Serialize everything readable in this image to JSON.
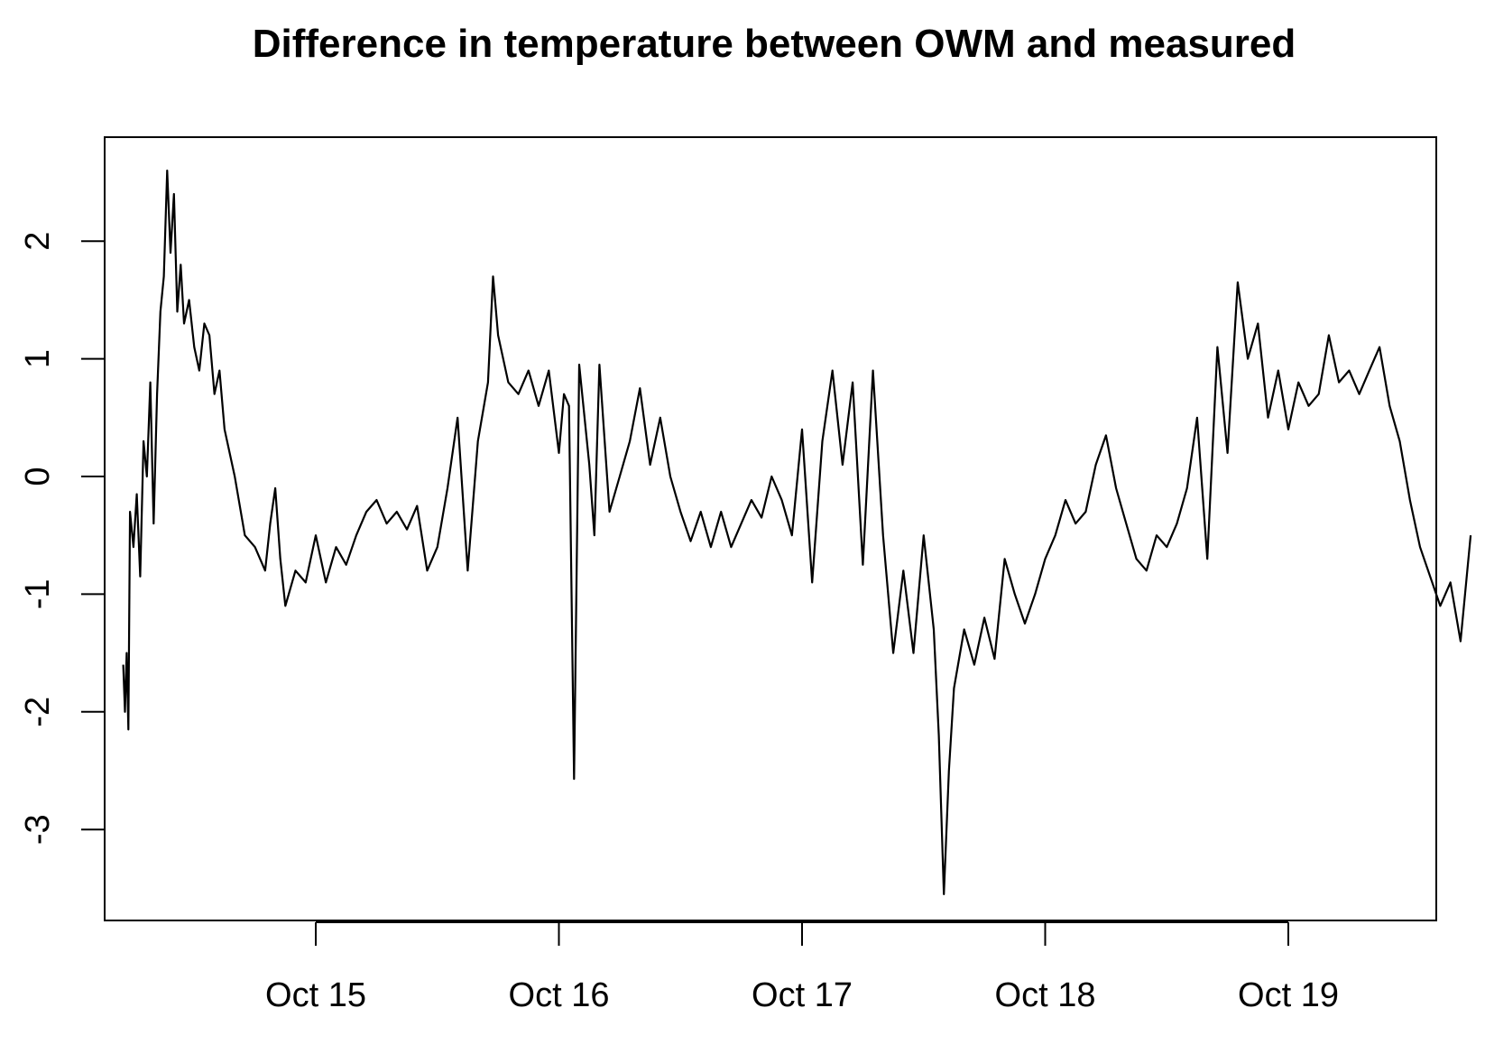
{
  "chart_data": {
    "type": "line",
    "title": "Difference in temperature between OWM and measured",
    "xlabel": "",
    "ylabel": "",
    "x_ticks": [
      "Oct 15",
      "Oct 16",
      "Oct 17",
      "Oct 18",
      "Oct 19"
    ],
    "y_ticks": [
      -3,
      -2,
      -1,
      0,
      1,
      2
    ],
    "xlim": [
      "2014-10-14 03:20",
      "2014-10-19 18:00"
    ],
    "ylim": [
      -3.75,
      2.9
    ],
    "grid": false,
    "legend": "none",
    "line_color": "#000000",
    "series": [
      {
        "points": [
          [
            "2014-10-14 05:00",
            -1.6
          ],
          [
            "2014-10-14 05:10",
            -2.0
          ],
          [
            "2014-10-14 05:20",
            -1.5
          ],
          [
            "2014-10-14 05:30",
            -2.15
          ],
          [
            "2014-10-14 05:40",
            -0.3
          ],
          [
            "2014-10-14 06:00",
            -0.6
          ],
          [
            "2014-10-14 06:20",
            -0.15
          ],
          [
            "2014-10-14 06:40",
            -0.85
          ],
          [
            "2014-10-14 07:00",
            0.3
          ],
          [
            "2014-10-14 07:20",
            0.0
          ],
          [
            "2014-10-14 07:40",
            0.8
          ],
          [
            "2014-10-14 08:00",
            -0.4
          ],
          [
            "2014-10-14 08:20",
            0.7
          ],
          [
            "2014-10-14 08:40",
            1.4
          ],
          [
            "2014-10-14 09:00",
            1.7
          ],
          [
            "2014-10-14 09:20",
            2.6
          ],
          [
            "2014-10-14 09:40",
            1.9
          ],
          [
            "2014-10-14 10:00",
            2.4
          ],
          [
            "2014-10-14 10:20",
            1.4
          ],
          [
            "2014-10-14 10:40",
            1.8
          ],
          [
            "2014-10-14 11:00",
            1.3
          ],
          [
            "2014-10-14 11:30",
            1.5
          ],
          [
            "2014-10-14 12:00",
            1.1
          ],
          [
            "2014-10-14 12:30",
            0.9
          ],
          [
            "2014-10-14 13:00",
            1.3
          ],
          [
            "2014-10-14 13:30",
            1.2
          ],
          [
            "2014-10-14 14:00",
            0.7
          ],
          [
            "2014-10-14 14:30",
            0.9
          ],
          [
            "2014-10-14 15:00",
            0.4
          ],
          [
            "2014-10-14 16:00",
            0.0
          ],
          [
            "2014-10-14 17:00",
            -0.5
          ],
          [
            "2014-10-14 18:00",
            -0.6
          ],
          [
            "2014-10-14 19:00",
            -0.8
          ],
          [
            "2014-10-14 19:30",
            -0.4
          ],
          [
            "2014-10-14 20:00",
            -0.1
          ],
          [
            "2014-10-14 20:30",
            -0.7
          ],
          [
            "2014-10-14 21:00",
            -1.1
          ],
          [
            "2014-10-14 22:00",
            -0.8
          ],
          [
            "2014-10-14 23:00",
            -0.9
          ],
          [
            "2014-10-15 00:00",
            -0.5
          ],
          [
            "2014-10-15 01:00",
            -0.9
          ],
          [
            "2014-10-15 02:00",
            -0.6
          ],
          [
            "2014-10-15 03:00",
            -0.75
          ],
          [
            "2014-10-15 04:00",
            -0.5
          ],
          [
            "2014-10-15 05:00",
            -0.3
          ],
          [
            "2014-10-15 06:00",
            -0.2
          ],
          [
            "2014-10-15 07:00",
            -0.4
          ],
          [
            "2014-10-15 08:00",
            -0.3
          ],
          [
            "2014-10-15 09:00",
            -0.45
          ],
          [
            "2014-10-15 10:00",
            -0.25
          ],
          [
            "2014-10-15 11:00",
            -0.8
          ],
          [
            "2014-10-15 12:00",
            -0.6
          ],
          [
            "2014-10-15 13:00",
            -0.1
          ],
          [
            "2014-10-15 14:00",
            0.5
          ],
          [
            "2014-10-15 15:00",
            -0.8
          ],
          [
            "2014-10-15 16:00",
            0.3
          ],
          [
            "2014-10-15 17:00",
            0.8
          ],
          [
            "2014-10-15 17:30",
            1.7
          ],
          [
            "2014-10-15 18:00",
            1.2
          ],
          [
            "2014-10-15 19:00",
            0.8
          ],
          [
            "2014-10-15 20:00",
            0.7
          ],
          [
            "2014-10-15 21:00",
            0.9
          ],
          [
            "2014-10-15 22:00",
            0.6
          ],
          [
            "2014-10-15 23:00",
            0.9
          ],
          [
            "2014-10-16 00:00",
            0.2
          ],
          [
            "2014-10-16 00:30",
            0.7
          ],
          [
            "2014-10-16 01:00",
            0.6
          ],
          [
            "2014-10-16 01:30",
            -2.57
          ],
          [
            "2014-10-16 02:00",
            0.95
          ],
          [
            "2014-10-16 03:00",
            0.1
          ],
          [
            "2014-10-16 03:30",
            -0.5
          ],
          [
            "2014-10-16 04:00",
            0.95
          ],
          [
            "2014-10-16 05:00",
            -0.3
          ],
          [
            "2014-10-16 06:00",
            0.0
          ],
          [
            "2014-10-16 07:00",
            0.3
          ],
          [
            "2014-10-16 08:00",
            0.75
          ],
          [
            "2014-10-16 09:00",
            0.1
          ],
          [
            "2014-10-16 10:00",
            0.5
          ],
          [
            "2014-10-16 11:00",
            0.0
          ],
          [
            "2014-10-16 12:00",
            -0.3
          ],
          [
            "2014-10-16 13:00",
            -0.55
          ],
          [
            "2014-10-16 14:00",
            -0.3
          ],
          [
            "2014-10-16 15:00",
            -0.6
          ],
          [
            "2014-10-16 16:00",
            -0.3
          ],
          [
            "2014-10-16 17:00",
            -0.6
          ],
          [
            "2014-10-16 18:00",
            -0.4
          ],
          [
            "2014-10-16 19:00",
            -0.2
          ],
          [
            "2014-10-16 20:00",
            -0.35
          ],
          [
            "2014-10-16 21:00",
            0.0
          ],
          [
            "2014-10-16 22:00",
            -0.2
          ],
          [
            "2014-10-16 23:00",
            -0.5
          ],
          [
            "2014-10-17 00:00",
            0.4
          ],
          [
            "2014-10-17 01:00",
            -0.9
          ],
          [
            "2014-10-17 02:00",
            0.3
          ],
          [
            "2014-10-17 03:00",
            0.9
          ],
          [
            "2014-10-17 04:00",
            0.1
          ],
          [
            "2014-10-17 05:00",
            0.8
          ],
          [
            "2014-10-17 06:00",
            -0.75
          ],
          [
            "2014-10-17 07:00",
            0.9
          ],
          [
            "2014-10-17 08:00",
            -0.5
          ],
          [
            "2014-10-17 09:00",
            -1.5
          ],
          [
            "2014-10-17 10:00",
            -0.8
          ],
          [
            "2014-10-17 11:00",
            -1.5
          ],
          [
            "2014-10-17 12:00",
            -0.5
          ],
          [
            "2014-10-17 13:00",
            -1.3
          ],
          [
            "2014-10-17 13:30",
            -2.2
          ],
          [
            "2014-10-17 14:00",
            -3.55
          ],
          [
            "2014-10-17 14:30",
            -2.5
          ],
          [
            "2014-10-17 15:00",
            -1.8
          ],
          [
            "2014-10-17 16:00",
            -1.3
          ],
          [
            "2014-10-17 17:00",
            -1.6
          ],
          [
            "2014-10-17 18:00",
            -1.2
          ],
          [
            "2014-10-17 19:00",
            -1.55
          ],
          [
            "2014-10-17 20:00",
            -0.7
          ],
          [
            "2014-10-17 21:00",
            -1.0
          ],
          [
            "2014-10-17 22:00",
            -1.25
          ],
          [
            "2014-10-17 23:00",
            -1.0
          ],
          [
            "2014-10-18 00:00",
            -0.7
          ],
          [
            "2014-10-18 01:00",
            -0.5
          ],
          [
            "2014-10-18 02:00",
            -0.2
          ],
          [
            "2014-10-18 03:00",
            -0.4
          ],
          [
            "2014-10-18 04:00",
            -0.3
          ],
          [
            "2014-10-18 05:00",
            0.1
          ],
          [
            "2014-10-18 06:00",
            0.35
          ],
          [
            "2014-10-18 07:00",
            -0.1
          ],
          [
            "2014-10-18 08:00",
            -0.4
          ],
          [
            "2014-10-18 09:00",
            -0.7
          ],
          [
            "2014-10-18 10:00",
            -0.8
          ],
          [
            "2014-10-18 11:00",
            -0.5
          ],
          [
            "2014-10-18 12:00",
            -0.6
          ],
          [
            "2014-10-18 13:00",
            -0.4
          ],
          [
            "2014-10-18 14:00",
            -0.1
          ],
          [
            "2014-10-18 15:00",
            0.5
          ],
          [
            "2014-10-18 16:00",
            -0.7
          ],
          [
            "2014-10-18 17:00",
            1.1
          ],
          [
            "2014-10-18 18:00",
            0.2
          ],
          [
            "2014-10-18 19:00",
            1.65
          ],
          [
            "2014-10-18 20:00",
            1.0
          ],
          [
            "2014-10-18 21:00",
            1.3
          ],
          [
            "2014-10-18 22:00",
            0.5
          ],
          [
            "2014-10-18 23:00",
            0.9
          ],
          [
            "2014-10-19 00:00",
            0.4
          ],
          [
            "2014-10-19 01:00",
            0.8
          ],
          [
            "2014-10-19 02:00",
            0.6
          ],
          [
            "2014-10-19 03:00",
            0.7
          ],
          [
            "2014-10-19 04:00",
            1.2
          ],
          [
            "2014-10-19 05:00",
            0.8
          ],
          [
            "2014-10-19 06:00",
            0.9
          ],
          [
            "2014-10-19 07:00",
            0.7
          ],
          [
            "2014-10-19 08:00",
            0.9
          ],
          [
            "2014-10-19 09:00",
            1.1
          ],
          [
            "2014-10-19 10:00",
            0.6
          ],
          [
            "2014-10-19 11:00",
            0.3
          ],
          [
            "2014-10-19 12:00",
            -0.2
          ],
          [
            "2014-10-19 13:00",
            -0.6
          ],
          [
            "2014-10-19 14:00",
            -0.85
          ],
          [
            "2014-10-19 15:00",
            -1.1
          ],
          [
            "2014-10-19 16:00",
            -0.9
          ],
          [
            "2014-10-19 17:00",
            -1.4
          ],
          [
            "2014-10-19 18:00",
            -0.5
          ]
        ]
      }
    ]
  }
}
